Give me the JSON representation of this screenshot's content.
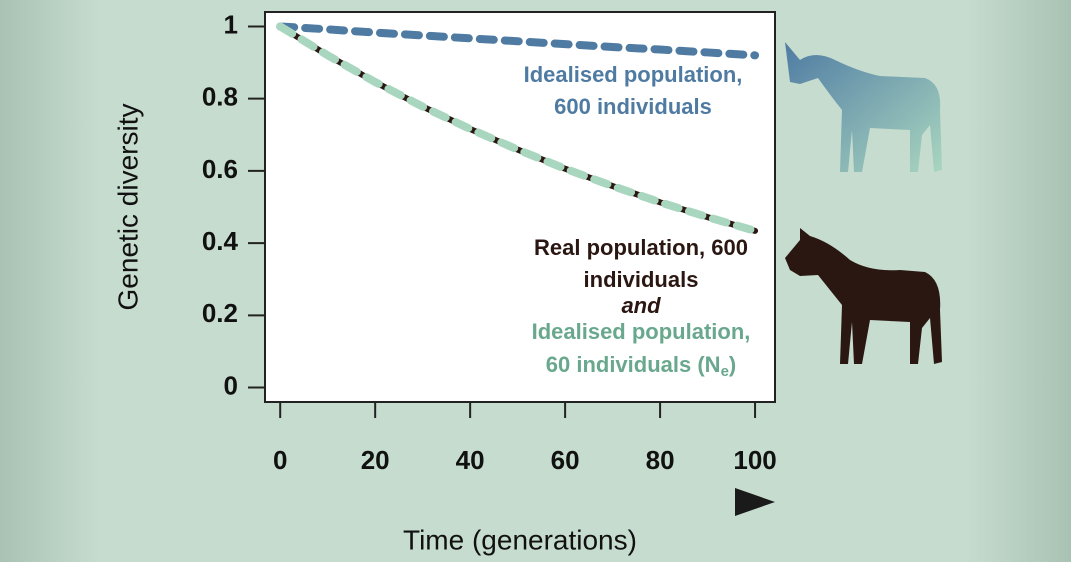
{
  "chart_data": {
    "type": "line",
    "xlabel": "Time (generations)",
    "ylabel": "Genetic diversity",
    "x": [
      0,
      10,
      20,
      30,
      40,
      50,
      60,
      70,
      80,
      90,
      100
    ],
    "series": [
      {
        "color": "#4f7ba3",
        "dash": true,
        "values": [
          1,
          0.992,
          0.983,
          0.975,
          0.967,
          0.959,
          0.951,
          0.943,
          0.936,
          0.928,
          0.92
        ]
      },
      {
        "color": "#2b1712",
        "dash": false,
        "values": [
          1,
          0.92,
          0.846,
          0.778,
          0.716,
          0.659,
          0.606,
          0.558,
          0.513,
          0.472,
          0.434
        ]
      },
      {
        "color": "#a9d6bf",
        "dash": true,
        "values": [
          1,
          0.92,
          0.846,
          0.778,
          0.716,
          0.659,
          0.606,
          0.558,
          0.513,
          0.472,
          0.434
        ]
      }
    ],
    "xlim": [
      -3.2,
      104.2
    ],
    "ylim": [
      -0.04,
      1.04
    ],
    "xticks": [
      0,
      20,
      40,
      60,
      80,
      100
    ],
    "yticks": [
      0,
      0.2,
      0.4,
      0.6,
      0.8,
      1
    ],
    "annotations": [
      {
        "color": "#4f7ba3",
        "lines": [
          "Idealised population,",
          "600 individuals"
        ]
      },
      {
        "color": "#2b1712",
        "lines": [
          "Real population, 600",
          "individuals"
        ]
      },
      {
        "color": "#2b1712",
        "lines": [
          "and"
        ]
      },
      {
        "color": "#6aa88e",
        "lines": [
          "Idealised population,",
          "60 individuals (N",
          "e",
          ")"
        ]
      }
    ]
  }
}
